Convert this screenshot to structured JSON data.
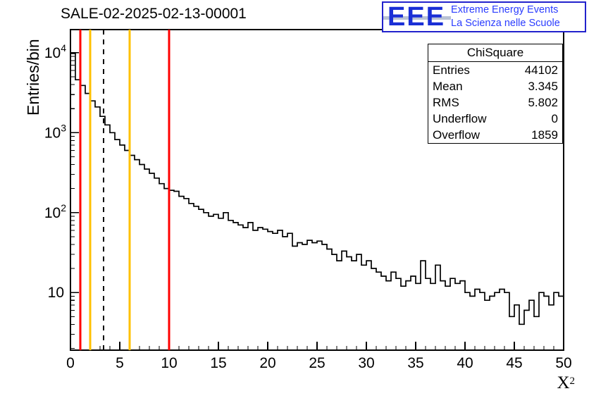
{
  "title": "SALE-02-2025-02-13-00001",
  "logo": {
    "main": "EEE",
    "line1": "Extreme Energy Events",
    "line2": "La Scienza nelle Scuole"
  },
  "axis": {
    "ylabel": "Entries/bin",
    "xlabel_base": "X",
    "xlabel_sup": "2"
  },
  "stats": {
    "title": "ChiSquare",
    "rows": [
      {
        "label": "Entries",
        "value": "44102"
      },
      {
        "label": "Mean",
        "value": "3.345"
      },
      {
        "label": "RMS",
        "value": "5.802"
      },
      {
        "label": "Underflow",
        "value": "0"
      },
      {
        "label": "Overflow",
        "value": "1859"
      }
    ]
  },
  "colors": {
    "histogram": "#000000",
    "frame": "#000000",
    "red_line": "#ff0000",
    "orange_line": "#ffc000",
    "dashed_line": "#000000",
    "logo_blue": "#1a2fd6"
  },
  "chart_data": {
    "type": "bar",
    "subtype": "step-histogram",
    "title": "SALE-02-2025-02-13-00001",
    "xlabel": "X^2",
    "ylabel": "Entries/bin",
    "yscale": "log",
    "grid": false,
    "legend": "none",
    "xlim": [
      0,
      50
    ],
    "ylim": [
      1.9,
      19500
    ],
    "x_start": 0,
    "bin_width": 0.5,
    "x_major_ticks": [
      0,
      5,
      10,
      15,
      20,
      25,
      30,
      35,
      40,
      45,
      50
    ],
    "y_major_ticks": [
      10,
      100,
      1000,
      10000
    ],
    "values": [
      9800,
      4600,
      3900,
      3100,
      2500,
      2100,
      1600,
      1250,
      1000,
      820,
      700,
      600,
      520,
      460,
      400,
      350,
      310,
      270,
      230,
      200,
      190,
      185,
      160,
      150,
      130,
      120,
      110,
      100,
      90,
      95,
      85,
      100,
      80,
      75,
      70,
      65,
      75,
      60,
      65,
      62,
      58,
      55,
      60,
      50,
      55,
      38,
      42,
      40,
      45,
      42,
      44,
      40,
      35,
      30,
      25,
      33,
      28,
      25,
      30,
      22,
      25,
      20,
      18,
      16,
      14,
      18,
      15,
      12,
      14,
      16,
      13,
      25,
      15,
      13,
      22,
      14,
      12,
      15,
      13,
      14,
      10,
      9,
      11,
      10,
      8,
      9,
      10,
      11,
      10,
      5,
      7,
      4,
      6,
      8,
      5,
      10,
      9,
      7,
      10,
      9
    ],
    "vlines": [
      {
        "x": 1.0,
        "color": "#ff0000",
        "style": "solid",
        "name": "cut-line-red-low"
      },
      {
        "x": 2.0,
        "color": "#ffc000",
        "style": "solid",
        "name": "cut-line-orange-low"
      },
      {
        "x": 3.345,
        "color": "#000000",
        "style": "dashed",
        "name": "mean-line"
      },
      {
        "x": 6.0,
        "color": "#ffc000",
        "style": "solid",
        "name": "cut-line-orange-high"
      },
      {
        "x": 10.0,
        "color": "#ff0000",
        "style": "solid",
        "name": "cut-line-red-high"
      }
    ]
  }
}
